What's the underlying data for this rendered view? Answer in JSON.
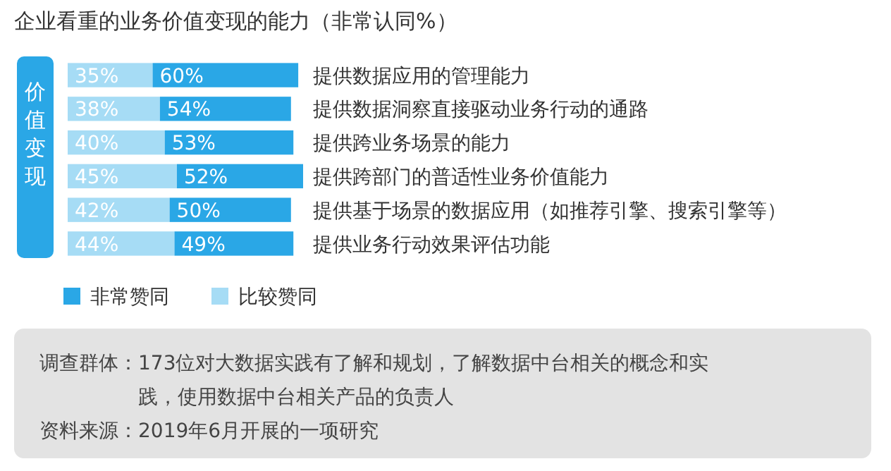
{
  "chart_data": {
    "type": "bar",
    "orientation": "horizontal",
    "stacked": true,
    "title": "企业看重的业务价值变现的能力（非常认同%）",
    "categories": [
      "提供数据应用的管理能力",
      "提供数据洞察直接驱动业务行动的通路",
      "提供跨业务场景的能力",
      "提供跨部门的普适性业务价值能力",
      "提供基于场景的数据应用（如推荐引擎、搜索引擎等）",
      "提供业务行动效果评估功能"
    ],
    "series": [
      {
        "name": "比较赞同",
        "color": "#a6dcf5",
        "values": [
          35,
          38,
          40,
          45,
          42,
          44
        ],
        "value_labels": [
          "35%",
          "38%",
          "40%",
          "45%",
          "42%",
          "44%"
        ]
      },
      {
        "name": "非常赞同",
        "color": "#2aa7e6",
        "values": [
          60,
          54,
          53,
          52,
          50,
          49
        ],
        "value_labels": [
          "60%",
          "54%",
          "53%",
          "52%",
          "50%",
          "49%"
        ]
      }
    ],
    "legend": "bottom left",
    "tick_labels": "y",
    "annotations": [
      "价值变现",
      "调查群体：173位对大数据实践有了解和规划，了解数据中台相关的概念和实践，使用数据中台相关产品的负责人",
      "资料来源：2019年6月开展的一项研究"
    ]
  }
}
